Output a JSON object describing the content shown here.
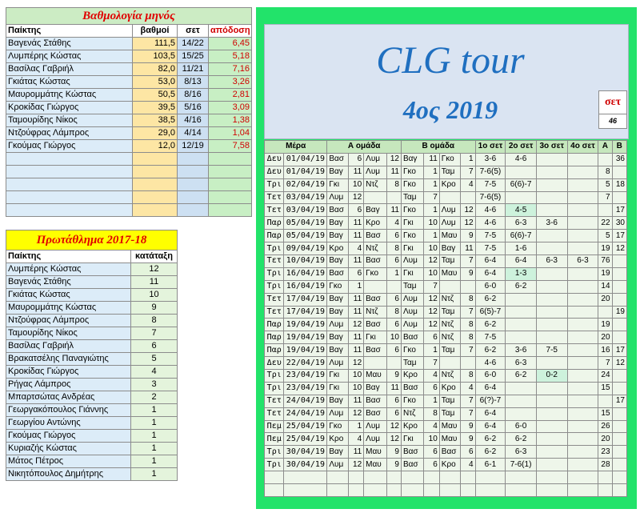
{
  "monthly": {
    "title": "Βαθμολογία μηνός",
    "headers": {
      "player": "Παίκτης",
      "points": "βαθμοί",
      "sets": "σετ",
      "return": "απόδοση"
    },
    "rows": [
      {
        "player": "Βαγενάς Στάθης",
        "points": "111,5",
        "sets": "14/22",
        "return": "6,45"
      },
      {
        "player": "Λυμπέρης Κώστας",
        "points": "103,5",
        "sets": "15/25",
        "return": "5,18"
      },
      {
        "player": "Βασίλας Γαβριήλ",
        "points": "82,0",
        "sets": "11/21",
        "return": "7,16"
      },
      {
        "player": "Γκιάτας Κώστας",
        "points": "53,0",
        "sets": "8/13",
        "return": "3,26"
      },
      {
        "player": "Μαυρομμάτης Κώστας",
        "points": "50,5",
        "sets": "8/16",
        "return": "2,81"
      },
      {
        "player": "Κροκίδας Γιώργος",
        "points": "39,5",
        "sets": "5/16",
        "return": "3,09"
      },
      {
        "player": "Ταμουρίδης Νίκος",
        "points": "38,5",
        "sets": "4/16",
        "return": "1,38"
      },
      {
        "player": "Ντζούφρας Λάμπρος",
        "points": "29,0",
        "sets": "4/14",
        "return": "1,04"
      },
      {
        "player": "Γκούμας Γιώργος",
        "points": "12,0",
        "sets": "12/19",
        "return": "7,58"
      },
      {
        "player": "",
        "points": "",
        "sets": "",
        "return": ""
      },
      {
        "player": "",
        "points": "",
        "sets": "",
        "return": ""
      },
      {
        "player": "",
        "points": "",
        "sets": "",
        "return": ""
      },
      {
        "player": "",
        "points": "",
        "sets": "",
        "return": ""
      },
      {
        "player": "",
        "points": "",
        "sets": "",
        "return": ""
      }
    ]
  },
  "championship": {
    "title": "Πρωτάθλημα 2017-18",
    "headers": {
      "player": "Παίκτης",
      "rank": "κατάταξη"
    },
    "rows": [
      {
        "player": "Λυμπέρης Κώστας",
        "rank": "12"
      },
      {
        "player": "Βαγενάς Στάθης",
        "rank": "11"
      },
      {
        "player": "Γκιάτας Κώστας",
        "rank": "10"
      },
      {
        "player": "Μαυρομμάτης Κώστας",
        "rank": "9"
      },
      {
        "player": "Ντζούφρας Λάμπρος",
        "rank": "8"
      },
      {
        "player": "Ταμουρίδης Νίκος",
        "rank": "7"
      },
      {
        "player": "Βασίλας Γαβριήλ",
        "rank": "6"
      },
      {
        "player": "Βρακατσέλης Παναγιώτης",
        "rank": "5"
      },
      {
        "player": "Κροκίδας Γιώργος",
        "rank": "4"
      },
      {
        "player": "Ρήγας Λάμπρος",
        "rank": "3"
      },
      {
        "player": "Μπαρτσώτας Ανδρέας",
        "rank": "2"
      },
      {
        "player": "Γεωργακόπουλος Γιάννης",
        "rank": "1"
      },
      {
        "player": "Γεωργίου Αντώνης",
        "rank": "1"
      },
      {
        "player": "Γκούμας Γιώργος",
        "rank": "1"
      },
      {
        "player": "Κυριαζής Κώστας",
        "rank": "1"
      },
      {
        "player": "Μάτος Πέτρος",
        "rank": "1"
      },
      {
        "player": "Νικητόπουλος Δημήτρης",
        "rank": "1"
      }
    ]
  },
  "tour": {
    "title": "CLG tour",
    "subtitle": "4ος 2019",
    "set_label": "σετ",
    "set_count": "46"
  },
  "matches": {
    "headers": {
      "day": "Μέρα",
      "team_a": "Α ομάδα",
      "team_b": "Β ομάδα",
      "set1": "1ο σετ",
      "set2": "2ο σετ",
      "set3": "3ο σετ",
      "set4": "4ο σετ",
      "a": "Α",
      "b": "Β"
    },
    "highlight_color": "#cdf2dc",
    "rows": [
      {
        "day": "Δευ",
        "date": "01/04/19",
        "a1": "Βασ",
        "a1s": "6",
        "a2": "Λυμ",
        "a2s": "12",
        "b1": "Βαγ",
        "b1s": "11",
        "b2": "Γκο",
        "b2s": "1",
        "s1": "3-6",
        "s2": "4-6",
        "s3": "",
        "s4": "",
        "A": "",
        "B": "36",
        "hl": []
      },
      {
        "day": "Δευ",
        "date": "01/04/19",
        "a1": "Βαγ",
        "a1s": "11",
        "a2": "Λυμ",
        "a2s": "11",
        "b1": "Γκο",
        "b1s": "1",
        "b2": "Ταμ",
        "b2s": "7",
        "s1": "7-6(5)",
        "s2": "",
        "s3": "",
        "s4": "",
        "A": "8",
        "B": "",
        "hl": []
      },
      {
        "day": "Τρι",
        "date": "02/04/19",
        "a1": "Γκι",
        "a1s": "10",
        "a2": "Ντζ",
        "a2s": "8",
        "b1": "Γκο",
        "b1s": "1",
        "b2": "Κρο",
        "b2s": "4",
        "s1": "7-5",
        "s2": "6(6)-7",
        "s3": "",
        "s4": "",
        "A": "5",
        "B": "18",
        "hl": []
      },
      {
        "day": "Τετ",
        "date": "03/04/19",
        "a1": "Λυμ",
        "a1s": "12",
        "a2": "",
        "a2s": "",
        "b1": "Ταμ",
        "b1s": "7",
        "b2": "",
        "b2s": "",
        "s1": "7-6(5)",
        "s2": "",
        "s3": "",
        "s4": "",
        "A": "7",
        "B": "",
        "hl": []
      },
      {
        "day": "Τετ",
        "date": "03/04/19",
        "a1": "Βασ",
        "a1s": "6",
        "a2": "Βαγ",
        "a2s": "11",
        "b1": "Γκο",
        "b1s": "1",
        "b2": "Λυμ",
        "b2s": "12",
        "s1": "4-6",
        "s2": "4-5",
        "s3": "",
        "s4": "",
        "A": "",
        "B": "17",
        "hl": [
          "s2"
        ]
      },
      {
        "day": "Παρ",
        "date": "05/04/19",
        "a1": "Βαγ",
        "a1s": "11",
        "a2": "Κρο",
        "a2s": "4",
        "b1": "Γκι",
        "b1s": "10",
        "b2": "Λυμ",
        "b2s": "12",
        "s1": "4-6",
        "s2": "6-3",
        "s3": "3-6",
        "s4": "",
        "A": "22",
        "B": "30",
        "hl": []
      },
      {
        "day": "Παρ",
        "date": "05/04/19",
        "a1": "Βαγ",
        "a1s": "11",
        "a2": "Βασ",
        "a2s": "6",
        "b1": "Γκο",
        "b1s": "1",
        "b2": "Μαυ",
        "b2s": "9",
        "s1": "7-5",
        "s2": "6(6)-7",
        "s3": "",
        "s4": "",
        "A": "5",
        "B": "17",
        "hl": []
      },
      {
        "day": "Τρι",
        "date": "09/04/19",
        "a1": "Κρο",
        "a1s": "4",
        "a2": "Ντζ",
        "a2s": "8",
        "b1": "Γκι",
        "b1s": "10",
        "b2": "Βαγ",
        "b2s": "11",
        "s1": "7-5",
        "s2": "1-6",
        "s3": "",
        "s4": "",
        "A": "19",
        "B": "12",
        "hl": []
      },
      {
        "day": "Τετ",
        "date": "10/04/19",
        "a1": "Βαγ",
        "a1s": "11",
        "a2": "Βασ",
        "a2s": "6",
        "b1": "Λυμ",
        "b1s": "12",
        "b2": "Ταμ",
        "b2s": "7",
        "s1": "6-4",
        "s2": "6-4",
        "s3": "6-3",
        "s4": "6-3",
        "A": "76",
        "B": "",
        "hl": []
      },
      {
        "day": "Τρι",
        "date": "16/04/19",
        "a1": "Βασ",
        "a1s": "6",
        "a2": "Γκο",
        "a2s": "1",
        "b1": "Γκι",
        "b1s": "10",
        "b2": "Μαυ",
        "b2s": "9",
        "s1": "6-4",
        "s2": "1-3",
        "s3": "",
        "s4": "",
        "A": "19",
        "B": "",
        "hl": [
          "s2"
        ]
      },
      {
        "day": "Τρι",
        "date": "16/04/19",
        "a1": "Γκο",
        "a1s": "1",
        "a2": "",
        "a2s": "",
        "b1": "Ταμ",
        "b1s": "7",
        "b2": "",
        "b2s": "",
        "s1": "6-0",
        "s2": "6-2",
        "s3": "",
        "s4": "",
        "A": "14",
        "B": "",
        "hl": []
      },
      {
        "day": "Τετ",
        "date": "17/04/19",
        "a1": "Βαγ",
        "a1s": "11",
        "a2": "Βασ",
        "a2s": "6",
        "b1": "Λυμ",
        "b1s": "12",
        "b2": "Ντζ",
        "b2s": "8",
        "s1": "6-2",
        "s2": "",
        "s3": "",
        "s4": "",
        "A": "20",
        "B": "",
        "hl": []
      },
      {
        "day": "Τετ",
        "date": "17/04/19",
        "a1": "Βαγ",
        "a1s": "11",
        "a2": "Ντζ",
        "a2s": "8",
        "b1": "Λυμ",
        "b1s": "12",
        "b2": "Ταμ",
        "b2s": "7",
        "s1": "6(5)-7",
        "s2": "",
        "s3": "",
        "s4": "",
        "A": "",
        "B": "19",
        "hl": []
      },
      {
        "day": "Παρ",
        "date": "19/04/19",
        "a1": "Λυμ",
        "a1s": "12",
        "a2": "Βασ",
        "a2s": "6",
        "b1": "Λυμ",
        "b1s": "12",
        "b2": "Ντζ",
        "b2s": "8",
        "s1": "6-2",
        "s2": "",
        "s3": "",
        "s4": "",
        "A": "19",
        "B": "",
        "hl": []
      },
      {
        "day": "Παρ",
        "date": "19/04/19",
        "a1": "Βαγ",
        "a1s": "11",
        "a2": "Γκι",
        "a2s": "10",
        "b1": "Βασ",
        "b1s": "6",
        "b2": "Ντζ",
        "b2s": "8",
        "s1": "7-5",
        "s2": "",
        "s3": "",
        "s4": "",
        "A": "20",
        "B": "",
        "hl": []
      },
      {
        "day": "Παρ",
        "date": "19/04/19",
        "a1": "Βαγ",
        "a1s": "11",
        "a2": "Βασ",
        "a2s": "6",
        "b1": "Γκο",
        "b1s": "1",
        "b2": "Ταμ",
        "b2s": "7",
        "s1": "6-2",
        "s2": "3-6",
        "s3": "7-5",
        "s4": "",
        "A": "16",
        "B": "17",
        "hl": []
      },
      {
        "day": "Δευ",
        "date": "22/04/19",
        "a1": "Λυμ",
        "a1s": "12",
        "a2": "",
        "a2s": "",
        "b1": "Ταμ",
        "b1s": "7",
        "b2": "",
        "b2s": "",
        "s1": "4-6",
        "s2": "6-3",
        "s3": "",
        "s4": "",
        "A": "7",
        "B": "12",
        "hl": []
      },
      {
        "day": "Τρι",
        "date": "23/04/19",
        "a1": "Γκι",
        "a1s": "10",
        "a2": "Μαυ",
        "a2s": "9",
        "b1": "Κρο",
        "b1s": "4",
        "b2": "Ντζ",
        "b2s": "8",
        "s1": "6-0",
        "s2": "6-2",
        "s3": "0-2",
        "s4": "",
        "A": "24",
        "B": "",
        "hl": [
          "s3"
        ]
      },
      {
        "day": "Τρι",
        "date": "23/04/19",
        "a1": "Γκι",
        "a1s": "10",
        "a2": "Βαγ",
        "a2s": "11",
        "b1": "Βασ",
        "b1s": "6",
        "b2": "Κρο",
        "b2s": "4",
        "s1": "6-4",
        "s2": "",
        "s3": "",
        "s4": "",
        "A": "15",
        "B": "",
        "hl": []
      },
      {
        "day": "Τετ",
        "date": "24/04/19",
        "a1": "Βαγ",
        "a1s": "11",
        "a2": "Βασ",
        "a2s": "6",
        "b1": "Γκο",
        "b1s": "1",
        "b2": "Ταμ",
        "b2s": "7",
        "s1": "6(?)-7",
        "s2": "",
        "s3": "",
        "s4": "",
        "A": "",
        "B": "17",
        "hl": []
      },
      {
        "day": "Τετ",
        "date": "24/04/19",
        "a1": "Λυμ",
        "a1s": "12",
        "a2": "Βασ",
        "a2s": "6",
        "b1": "Ντζ",
        "b1s": "8",
        "b2": "Ταμ",
        "b2s": "7",
        "s1": "6-4",
        "s2": "",
        "s3": "",
        "s4": "",
        "A": "15",
        "B": "",
        "hl": []
      },
      {
        "day": "Πεμ",
        "date": "25/04/19",
        "a1": "Γκο",
        "a1s": "1",
        "a2": "Λυμ",
        "a2s": "12",
        "b1": "Κρο",
        "b1s": "4",
        "b2": "Μαυ",
        "b2s": "9",
        "s1": "6-4",
        "s2": "6-0",
        "s3": "",
        "s4": "",
        "A": "26",
        "B": "",
        "hl": []
      },
      {
        "day": "Πεμ",
        "date": "25/04/19",
        "a1": "Κρο",
        "a1s": "4",
        "a2": "Λυμ",
        "a2s": "12",
        "b1": "Γκι",
        "b1s": "10",
        "b2": "Μαυ",
        "b2s": "9",
        "s1": "6-2",
        "s2": "6-2",
        "s3": "",
        "s4": "",
        "A": "20",
        "B": "",
        "hl": []
      },
      {
        "day": "Τρι",
        "date": "30/04/19",
        "a1": "Βαγ",
        "a1s": "11",
        "a2": "Μαυ",
        "a2s": "9",
        "b1": "Βασ",
        "b1s": "6",
        "b2": "Βασ",
        "b2s": "6",
        "s1": "6-2",
        "s2": "6-3",
        "s3": "",
        "s4": "",
        "A": "23",
        "B": "",
        "hl": []
      },
      {
        "day": "Τρι",
        "date": "30/04/19",
        "a1": "Λυμ",
        "a1s": "12",
        "a2": "Μαυ",
        "a2s": "9",
        "b1": "Βασ",
        "b1s": "6",
        "b2": "Κρο",
        "b2s": "4",
        "s1": "6-1",
        "s2": "7-6(1)",
        "s3": "",
        "s4": "",
        "A": "28",
        "B": "",
        "hl": []
      }
    ],
    "blank_rows": 2
  }
}
